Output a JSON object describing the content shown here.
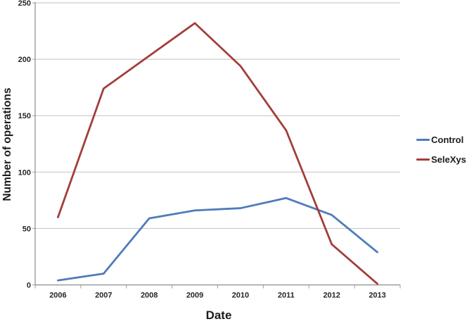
{
  "chart_data": {
    "type": "line",
    "title": "",
    "xlabel": "Date",
    "ylabel": "Number of operations",
    "categories": [
      "2006",
      "2007",
      "2008",
      "2009",
      "2010",
      "2011",
      "2012",
      "2013"
    ],
    "series": [
      {
        "name": "Control",
        "color": "#4E7CBB",
        "values": [
          4,
          10,
          59,
          66,
          68,
          77,
          62,
          29
        ]
      },
      {
        "name": "SeleXys",
        "color": "#A33E39",
        "values": [
          60,
          174,
          203,
          232,
          194,
          137,
          36,
          1
        ]
      }
    ],
    "ylim": [
      0,
      250
    ],
    "ytick_step": 50,
    "grid": "horizontal",
    "legend_position": "right",
    "colors": {
      "grid": "#C2C2C2",
      "axis": "#9C9C9C",
      "text": "#262626",
      "background": "#FFFFFF"
    }
  }
}
